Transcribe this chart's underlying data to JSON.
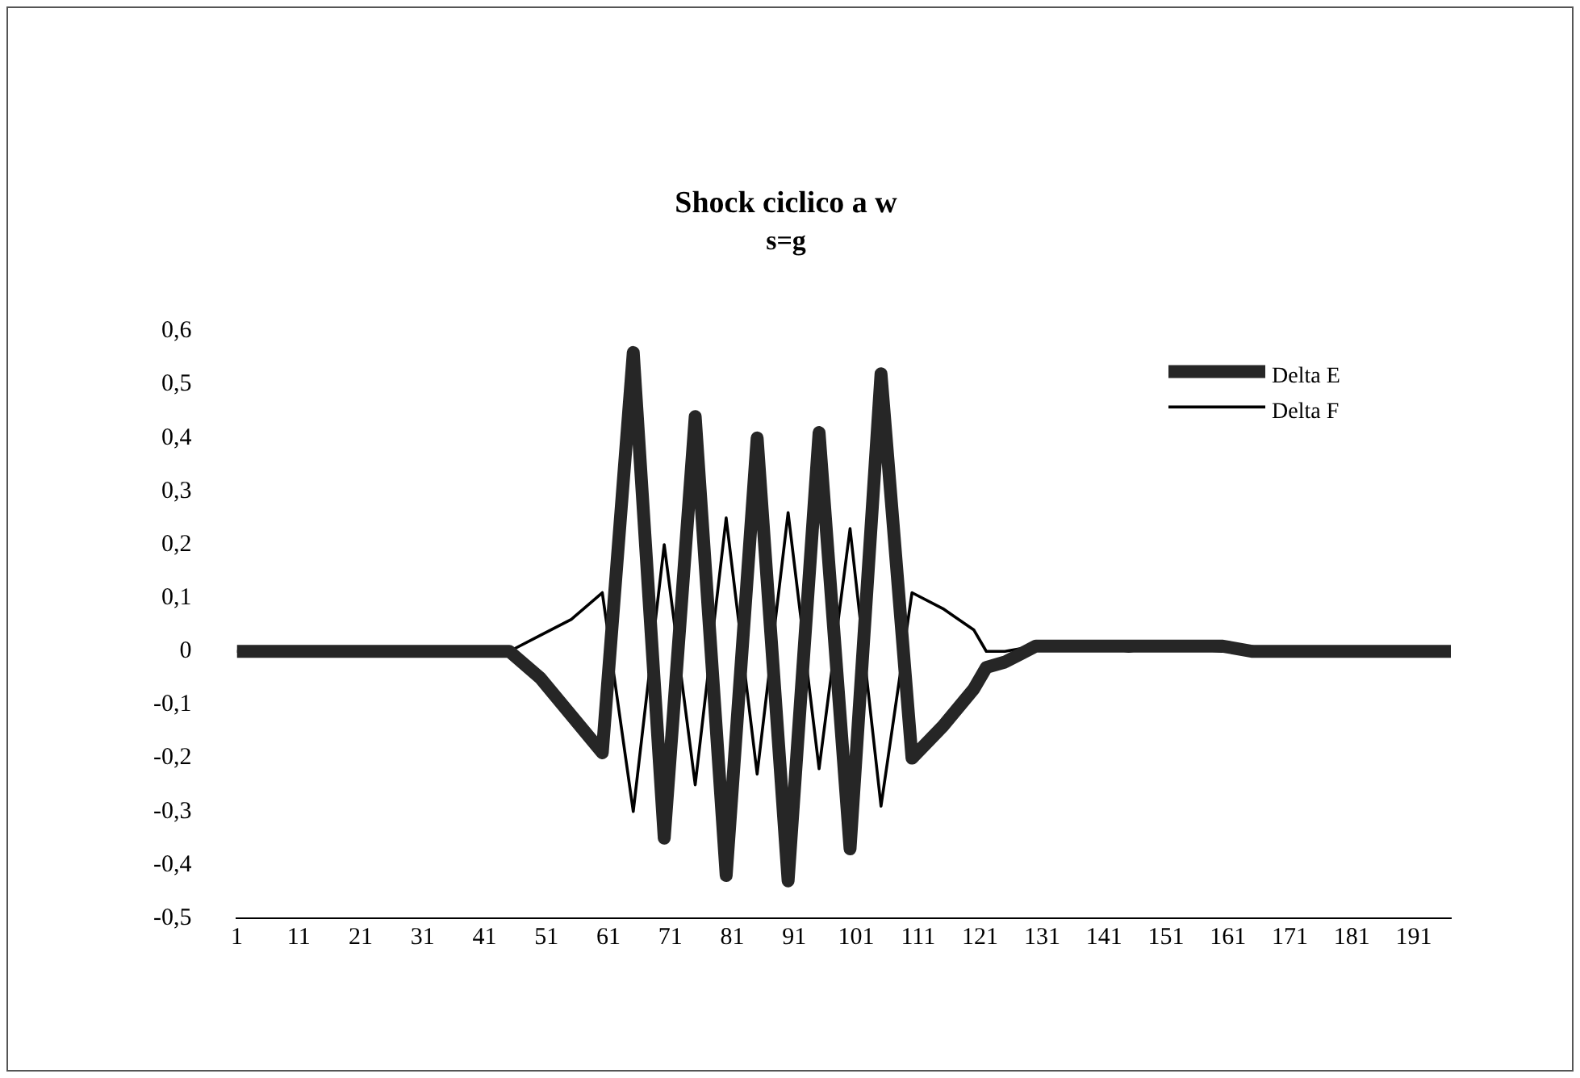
{
  "chart_data": {
    "type": "line",
    "title": "Shock ciclico a w",
    "subtitle": "s=g",
    "x": [
      1,
      45,
      50,
      55,
      60,
      65,
      70,
      75,
      80,
      85,
      90,
      95,
      100,
      105,
      110,
      115,
      120,
      122,
      125,
      130,
      140,
      145,
      150,
      160,
      165,
      197
    ],
    "xlim": [
      1,
      197
    ],
    "xticks": [
      1,
      11,
      21,
      31,
      41,
      51,
      61,
      71,
      81,
      91,
      101,
      111,
      121,
      131,
      141,
      151,
      161,
      171,
      181,
      191
    ],
    "ylim": [
      -0.5,
      0.6
    ],
    "yticks": [
      {
        "value": -0.5,
        "label": "-0,5"
      },
      {
        "value": -0.4,
        "label": "-0,4"
      },
      {
        "value": -0.3,
        "label": "-0,3"
      },
      {
        "value": -0.2,
        "label": "-0,2"
      },
      {
        "value": -0.1,
        "label": "-0,1"
      },
      {
        "value": 0,
        "label": "0"
      },
      {
        "value": 0.1,
        "label": "0,1"
      },
      {
        "value": 0.2,
        "label": "0,2"
      },
      {
        "value": 0.3,
        "label": "0,3"
      },
      {
        "value": 0.4,
        "label": "0,4"
      },
      {
        "value": 0.5,
        "label": "0,5"
      },
      {
        "value": 0.6,
        "label": "0,6"
      }
    ],
    "series": [
      {
        "name": "Delta E",
        "color": "#262626",
        "values": [
          0,
          0,
          -0.05,
          -0.12,
          -0.19,
          0.56,
          -0.35,
          0.44,
          -0.42,
          0.4,
          -0.43,
          0.41,
          -0.37,
          0.52,
          -0.2,
          -0.14,
          -0.07,
          -0.03,
          -0.02,
          0.01,
          0.01,
          0.01,
          0.01,
          0.01,
          0,
          0
        ]
      },
      {
        "name": "Delta F",
        "color": "#000000",
        "values": [
          0,
          0,
          0.03,
          0.06,
          0.11,
          -0.3,
          0.2,
          -0.25,
          0.25,
          -0.23,
          0.26,
          -0.22,
          0.23,
          -0.29,
          0.11,
          0.08,
          0.04,
          0,
          0,
          0.01,
          0.01,
          0,
          0.01,
          0,
          0,
          0
        ]
      }
    ],
    "grid": false,
    "legend": "top right",
    "marker": "none",
    "line_style": "solid"
  }
}
